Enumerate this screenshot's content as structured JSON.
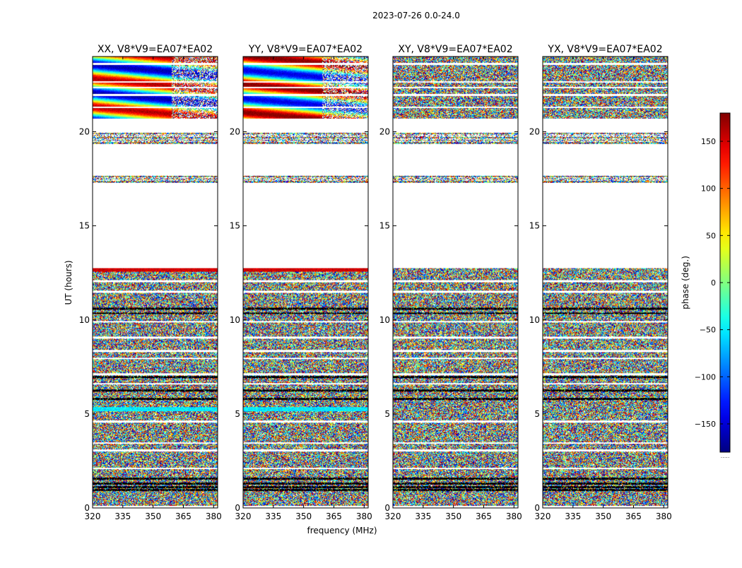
{
  "figure_title": "2023-07-26 0.0-24.0",
  "chart_data": {
    "type": "heatmap",
    "ylabel": "UT (hours)",
    "xlabel": "frequency (MHz)",
    "xlim": [
      320,
      382
    ],
    "ylim": [
      0,
      24
    ],
    "xticks": [
      320,
      335,
      350,
      365,
      380
    ],
    "yticks": [
      0,
      5,
      10,
      15,
      20
    ],
    "colorbar": {
      "label": "phase (deg.)",
      "range": [
        -180,
        180
      ],
      "ticks": [
        150,
        100,
        50,
        0,
        -50,
        -100,
        -150
      ],
      "tick_labels": [
        "150",
        "100",
        "50",
        "0",
        "−50",
        "−100",
        "−150"
      ],
      "colormap": "jet",
      "footer": "....."
    },
    "panels": [
      {
        "title": "XX, V8*V9=EA07*EA02",
        "mode": "coherent",
        "seed": 11
      },
      {
        "title": "YY, V8*V9=EA07*EA02",
        "mode": "coherent_yy",
        "seed": 23
      },
      {
        "title": "XY, V8*V9=EA07*EA02",
        "mode": "noise",
        "seed": 37
      },
      {
        "title": "YX, V8*V9=EA07*EA02",
        "mode": "noise",
        "seed": 53
      }
    ],
    "flagged_time_ranges_hours": [
      [
        12.75,
        17.3
      ],
      [
        17.65,
        19.35
      ],
      [
        19.95,
        20.6
      ]
    ],
    "sparse_rows_hours": [
      17.45,
      17.55,
      19.5,
      19.6,
      19.75,
      19.85
    ]
  }
}
